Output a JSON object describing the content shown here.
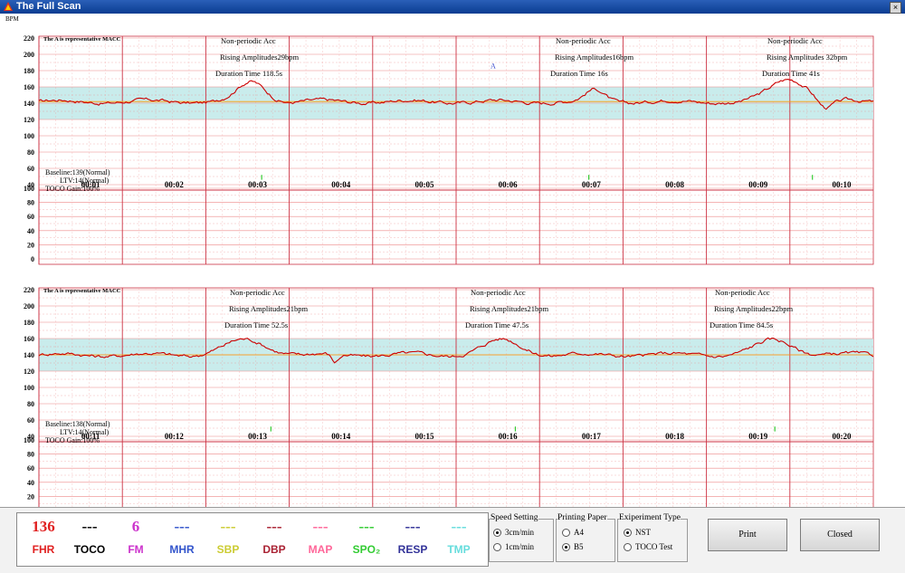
{
  "window": {
    "title": "The Full Scan",
    "close_label": "×"
  },
  "chart_common": {
    "unit_label": "BPM",
    "macc_note": "The A is representative MACC",
    "baseline_color": "#ff9900",
    "normal_band_color": "#c9ecec",
    "trace_color": "#cc0000"
  },
  "panels": [
    {
      "fhr_ticks": [
        "220",
        "200",
        "180",
        "160",
        "140",
        "120",
        "100",
        "80",
        "60",
        "40"
      ],
      "toco_ticks": [
        "100",
        "80",
        "60",
        "40",
        "20",
        "0"
      ],
      "time_labels": [
        "00:01",
        "00:02",
        "00:03",
        "00:04",
        "00:05",
        "00:06",
        "00:07",
        "00:08",
        "00:09",
        "00:10"
      ],
      "baseline_text": "Baseline:139(Normal)",
      "ltv_text": "LTV:14(Normal)",
      "toco_gain_text": "TOCO Gain:100%",
      "marker": "A",
      "annotations": [
        {
          "lines": [
            "Non-periodic Acc",
            "Rising Amplitudes29bpm",
            "Duration Time 118.5s"
          ]
        },
        {
          "lines": [
            "Non-periodic Acc",
            "Rising Amplitudes16bpm",
            "Duration Time 16s"
          ]
        },
        {
          "lines": [
            "Non-periodic Acc",
            "Rising Amplitudes 32bpm",
            "Duration Time 41s"
          ]
        }
      ]
    },
    {
      "fhr_ticks": [
        "220",
        "200",
        "180",
        "160",
        "140",
        "120",
        "100",
        "80",
        "60",
        "40"
      ],
      "toco_ticks": [
        "100",
        "80",
        "60",
        "40",
        "20",
        "0"
      ],
      "time_labels": [
        "00:11",
        "00:12",
        "00:13",
        "00:14",
        "00:15",
        "00:16",
        "00:17",
        "00:18",
        "00:19",
        "00:20"
      ],
      "baseline_text": "Baseline:138(Normal)",
      "ltv_text": "LTV:14(Normal)",
      "toco_gain_text": "TOCO Gain:100%",
      "annotations": [
        {
          "lines": [
            "Non-periodic Acc",
            "Rising Amplitudes21bpm",
            "Duration Time 52.5s"
          ]
        },
        {
          "lines": [
            "Non-periodic Acc",
            "Rising Amplitudes21bpm",
            "Duration Time 47.5s"
          ]
        },
        {
          "lines": [
            "Non-periodic Acc",
            "Rising Amplitudes22bpm",
            "Duration Time 84.5s"
          ]
        }
      ]
    }
  ],
  "legend": [
    {
      "value": "136",
      "label": "FHR",
      "color": "#e02020",
      "label_color": "#e02020"
    },
    {
      "value": "---",
      "label": "TOCO",
      "color": "#000000",
      "label_color": "#000000"
    },
    {
      "value": "6",
      "label": "FM",
      "color": "#cc33cc",
      "label_color": "#cc33cc"
    },
    {
      "value": "---",
      "label": "MHR",
      "color": "#3355cc",
      "label_color": "#3355cc"
    },
    {
      "value": "---",
      "label": "SBP",
      "color": "#cccc33",
      "label_color": "#cccc33"
    },
    {
      "value": "---",
      "label": "DBP",
      "color": "#aa2233",
      "label_color": "#aa2233"
    },
    {
      "value": "---",
      "label": "MAP",
      "color": "#ff6699",
      "label_color": "#ff6699"
    },
    {
      "value": "---",
      "label": "SPO₂",
      "color": "#33cc33",
      "label_color": "#33cc33"
    },
    {
      "value": "---",
      "label": "RESP",
      "color": "#333399",
      "label_color": "#333399"
    },
    {
      "value": "---",
      "label": "TMP",
      "color": "#66dddd",
      "label_color": "#66dddd"
    }
  ],
  "speed_setting": {
    "title": "Speed Setting",
    "options": [
      {
        "label": "3cm/min",
        "selected": true
      },
      {
        "label": "1cm/min",
        "selected": false
      }
    ]
  },
  "printing_paper": {
    "title": "Printing Paper",
    "options": [
      {
        "label": "A4",
        "selected": false
      },
      {
        "label": "B5",
        "selected": true
      }
    ]
  },
  "experiment_type": {
    "title": "Exiperiment Type",
    "options": [
      {
        "label": "NST",
        "selected": true
      },
      {
        "label": "TOCO Test",
        "selected": false
      }
    ]
  },
  "buttons": {
    "print": "Print",
    "closed": "Closed"
  }
}
